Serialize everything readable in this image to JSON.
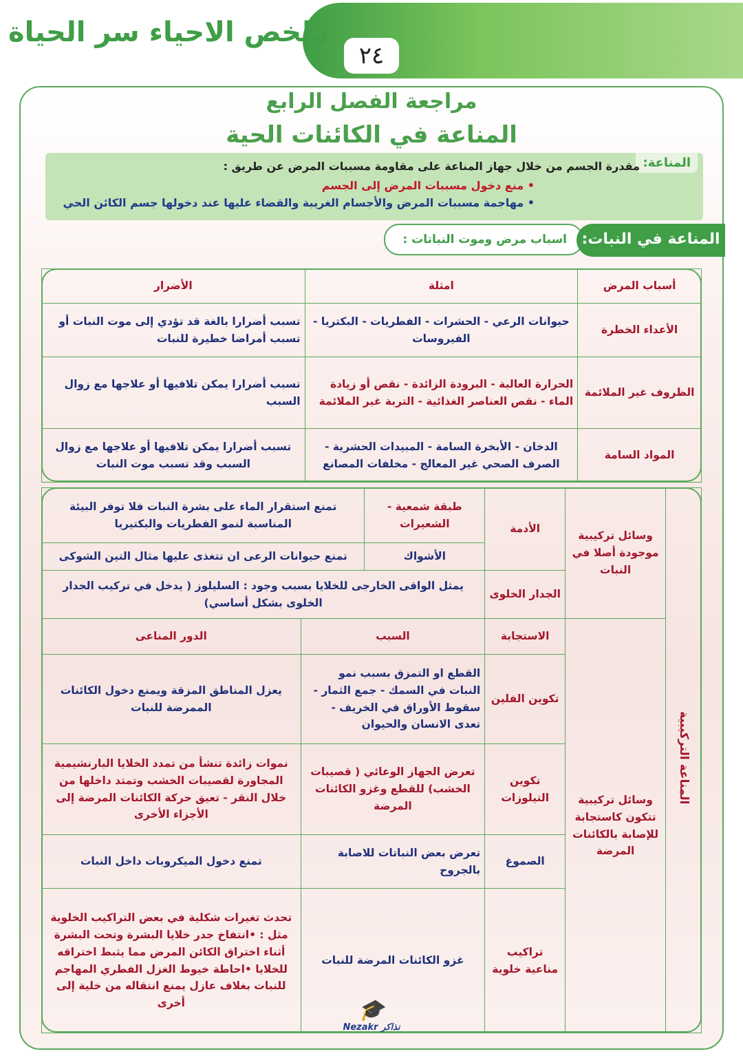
{
  "header": {
    "title": "ملخص الاحياء سر الحياة",
    "page_number": "٢٤"
  },
  "titles": {
    "line1": "مراجعة الفصل الرابع",
    "line2": "المناعة في الكائنات الحية"
  },
  "definition": {
    "label": "المناعة:",
    "text": "مقدرة الجسم من خلال جهاز المناعة على مقاومة مسببات المرض عن طريق :",
    "bullets": [
      "• منع دخول مسببات المرض إلى الجسم",
      "• مهاجمة مسببات المرض والأجسام الغريبة والقضاء عليها عند دخولها جسم الكائن الحي"
    ]
  },
  "section": {
    "label": "المناعة في النبات:",
    "sub": "اسباب مرض وموت النباتات :"
  },
  "causes_table": {
    "headers": [
      "أسباب المرض",
      "امثلة",
      "الأضرار"
    ],
    "rows": [
      [
        "الأعداء الخطرة",
        "حيوانات الرعي - الحشرات - الفطريات - البكتريا - الفيروسات",
        "تسبب أضرارا بالغة قد تؤدي إلى موت النبات أو تسبب أمراضا خطيرة للنبات"
      ],
      [
        "الظروف غير الملائمة",
        "الحرارة العالية - البرودة الزائدة - نقص أو زيادة الماء - نقص العناصر الغذائية - التربة غير الملائمة",
        "تسبب أضرارا يمكن تلافيها أو علاجها مع زوال السبب"
      ],
      [
        "المواد السامة",
        "الدخان - الأبخرة السامة - المبيدات الحشرية - الصرف الصحي غير المعالج - مخلفات المصانع",
        "تسبب أضرارا يمكن تلافيها أو علاجها مع زوال السبب وقد تسبب موت النبات"
      ]
    ]
  },
  "structural": {
    "side_label": "المناعة التركيبية",
    "group1": "وسائل تركيبية موجودة أصلا في النبات",
    "epidermis": "الأدمة",
    "wax": "طبقة شمعية - الشعيرات",
    "wax_role": "تمنع استقرار الماء على بشرة النبات فلا توفر البيئة المناسبة لنمو الفطريات والبكتيريا",
    "thorns": "الأشواك",
    "thorns_role": "تمنع حيوانات الرعى ان تتغذى عليها مثال التين الشوكى",
    "wall": "الجدار الخلوى",
    "wall_role": "يمثل الواقى الخارجى للخلايا بسبب وجود : السليلوز ( يدخل في تركيب الجدار الخلوى بشكل أساسي)",
    "group2": "وسائل تركيبية تتكون كاستجابة للإصابة بالكائنات المرضة",
    "headers": [
      "الاستجابة",
      "السبب",
      "الدور المناعى"
    ],
    "rows": [
      [
        "تكوين الفلين",
        "القطع او التمزق بسبب نمو النبات في السمك - جمع الثمار - سقوط الأوراق في الخريف - تعدى الانسان والحيوان",
        "يعزل المناطق المزقة ويمنع دخول الكائنات الممرضة للنبات"
      ],
      [
        "تكوين التيلوزات",
        "تعرض الجهاز الوعائي ( قصيبات الخشب) للقطع وغزو الكائنات المرضة",
        "نموات زائدة تنشأ من تمدد الخلايا البارنشيمية المجاورة لقصيبات الخشب وتمتد داخلها من خلال النقر - تعيق حركة الكائنات المرضة إلى الأجزاء الأخرى"
      ],
      [
        "الصموغ",
        "تعرض بعض النباتات للاصابة بالجروح",
        "تمنع دخول الميكروبات داخل النبات"
      ],
      [
        "تراكيب مناعية خلوية",
        "غزو الكائنات المرضة للنبات",
        "تحدث تغيرات شكلية في بعض التراكيب الخلوية مثل : •انتفاخ جدر خلايا البشرة وتحت البشرة أثناء اختراق الكائن المرض مما يثبط اختراقه للخلايا •احاطة خيوط الغزل الفطري المهاجم للنبات بغلاف عازل يمنع انتقاله من خلية إلى أخرى"
      ]
    ]
  },
  "watermark": "Nezakr نذاكر",
  "colors": {
    "green": "#3f9e46",
    "red": "#a3162b",
    "blue": "#1f2f7a"
  }
}
